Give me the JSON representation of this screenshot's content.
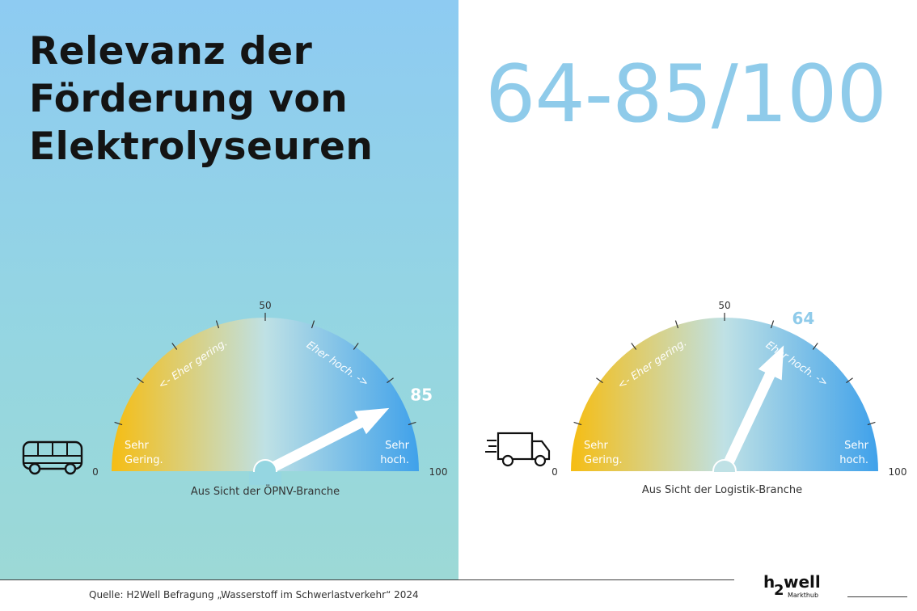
{
  "title_lines": [
    "Relevanz der",
    "Förderung von",
    "Elektrolyseuren"
  ],
  "range_text": "64-85/100",
  "colors": {
    "low": "#f6bd12",
    "mid": "#bfe1e5",
    "high": "#3fa1ea",
    "accent": "#8fcbea",
    "left_bg": "#95d6e1"
  },
  "chart_data": [
    {
      "type": "gauge",
      "value": 85,
      "min": 0,
      "max": 100,
      "ticks": [
        0,
        50,
        100
      ],
      "tick_labels": {
        "min": "0",
        "mid": "50",
        "max": "100"
      },
      "minor_ticks": [
        10,
        20,
        30,
        40,
        50,
        60,
        70,
        80,
        90
      ],
      "value_label": "85",
      "low_label": [
        "Sehr",
        "Gering."
      ],
      "high_label": [
        "Sehr",
        "hoch."
      ],
      "left_arc_label": "<- Eher gering.",
      "right_arc_label": "Eher hoch. ->",
      "caption": "Aus Sicht der ÖPNV-Branche",
      "icon": "bus-icon"
    },
    {
      "type": "gauge",
      "value": 64,
      "min": 0,
      "max": 100,
      "ticks": [
        0,
        50,
        100
      ],
      "tick_labels": {
        "min": "0",
        "mid": "50",
        "max": "100"
      },
      "minor_ticks": [
        10,
        20,
        30,
        40,
        50,
        60,
        70,
        80,
        90
      ],
      "value_label": "64",
      "low_label": [
        "Sehr",
        "Gering."
      ],
      "high_label": [
        "Sehr",
        "hoch."
      ],
      "left_arc_label": "<- Eher gering.",
      "right_arc_label": "Eher hoch. ->",
      "caption": "Aus Sicht der Logistik-Branche",
      "icon": "truck-icon"
    }
  ],
  "footer": {
    "source": "Quelle: H2Well Befragung „Wasserstoff im Schwerlastverkehr“ 2024",
    "logo_h": "h",
    "logo_2": "2",
    "logo_well": "well",
    "logo_sub": "Markthub"
  }
}
